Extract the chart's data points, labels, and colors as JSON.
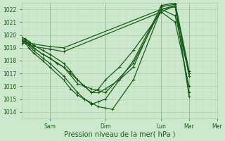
{
  "xlabel": "Pression niveau de la mer( hPa )",
  "bg_color": "#cce8cc",
  "grid_color_major": "#aaccaa",
  "grid_color_minor": "#bbddbb",
  "line_color": "#1a5c1a",
  "ylim": [
    1013.5,
    1022.5
  ],
  "xlim": [
    0,
    168
  ],
  "xticks": [
    24,
    72,
    120,
    144,
    168
  ],
  "xtick_labels": [
    "Sam",
    "Dim",
    "Lun",
    "Mar",
    "Mer"
  ],
  "yticks": [
    1014,
    1015,
    1016,
    1017,
    1018,
    1019,
    1020,
    1021,
    1022
  ],
  "series": [
    {
      "x": [
        0,
        3,
        6,
        10,
        24,
        36,
        120,
        132,
        144
      ],
      "y": [
        1019.4,
        1019.5,
        1019.4,
        1019.3,
        1019.1,
        1019.0,
        1022.0,
        1021.5,
        1017.0
      ]
    },
    {
      "x": [
        0,
        3,
        6,
        10,
        24,
        36,
        120,
        132,
        144
      ],
      "y": [
        1019.3,
        1019.4,
        1019.3,
        1019.1,
        1018.9,
        1018.7,
        1021.8,
        1021.0,
        1016.0
      ]
    },
    {
      "x": [
        0,
        3,
        6,
        10,
        18,
        24,
        30,
        36,
        48,
        60,
        72,
        96,
        120,
        132,
        144
      ],
      "y": [
        1019.5,
        1019.5,
        1019.3,
        1019.0,
        1018.5,
        1018.2,
        1017.8,
        1017.5,
        1016.2,
        1015.8,
        1015.5,
        1017.8,
        1022.0,
        1022.2,
        1015.5
      ]
    },
    {
      "x": [
        0,
        3,
        6,
        10,
        18,
        24,
        36,
        48,
        54,
        60,
        66,
        72,
        78,
        96,
        120,
        132,
        144
      ],
      "y": [
        1019.6,
        1019.5,
        1019.2,
        1018.8,
        1018.2,
        1017.8,
        1016.8,
        1015.5,
        1015.0,
        1014.7,
        1014.4,
        1014.3,
        1014.2,
        1016.5,
        1022.0,
        1022.3,
        1015.2
      ]
    },
    {
      "x": [
        0,
        3,
        6,
        10,
        18,
        24,
        36,
        42,
        48,
        54,
        60,
        66,
        72,
        96,
        120,
        132,
        144
      ],
      "y": [
        1019.5,
        1019.4,
        1019.0,
        1018.6,
        1018.0,
        1017.5,
        1016.5,
        1015.8,
        1015.3,
        1015.0,
        1014.6,
        1014.8,
        1015.0,
        1018.0,
        1022.2,
        1022.4,
        1017.0
      ]
    },
    {
      "x": [
        0,
        3,
        6,
        10,
        18,
        24,
        36,
        42,
        48,
        54,
        60,
        66,
        72,
        84,
        96,
        120,
        132,
        144
      ],
      "y": [
        1019.8,
        1019.7,
        1019.5,
        1019.2,
        1018.8,
        1018.5,
        1017.8,
        1017.2,
        1016.5,
        1016.0,
        1015.5,
        1015.5,
        1015.8,
        1016.5,
        1017.5,
        1022.3,
        1022.5,
        1017.2
      ]
    },
    {
      "x": [
        0,
        3,
        6,
        10,
        18,
        24,
        36,
        42,
        48,
        54,
        60,
        66,
        72,
        84,
        96,
        120,
        132,
        144
      ],
      "y": [
        1019.7,
        1019.6,
        1019.3,
        1019.0,
        1018.5,
        1018.2,
        1017.5,
        1017.0,
        1016.5,
        1016.0,
        1015.5,
        1015.8,
        1016.5,
        1017.5,
        1018.8,
        1021.8,
        1022.3,
        1016.8
      ]
    }
  ],
  "marker": "+",
  "marker_size": 3,
  "linewidth": 0.9,
  "vlines": [
    24,
    72,
    120,
    144,
    168
  ]
}
